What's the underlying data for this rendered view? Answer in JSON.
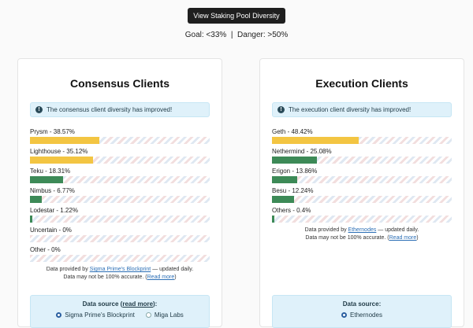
{
  "header": {
    "diversity_button": "View Staking Pool Diversity",
    "goal_text": "Goal: <33%",
    "separator": "|",
    "danger_text": "Danger: >50%"
  },
  "colors": {
    "majority": "#f3c542",
    "healthy": "#3d8a57"
  },
  "consensus": {
    "title": "Consensus Clients",
    "alert": "The consensus client diversity has improved!",
    "clients": [
      {
        "label": "Prysm - 38.57%",
        "share": 38.57,
        "status": "majority"
      },
      {
        "label": "Lighthouse - 35.12%",
        "share": 35.12,
        "status": "majority"
      },
      {
        "label": "Teku - 18.31%",
        "share": 18.31,
        "status": "healthy"
      },
      {
        "label": "Nimbus - 6.77%",
        "share": 6.77,
        "status": "healthy"
      },
      {
        "label": "Lodestar - 1.22%",
        "share": 1.22,
        "status": "healthy"
      },
      {
        "label": "Uncertain - 0%",
        "share": 0,
        "status": "healthy"
      },
      {
        "label": "Other - 0%",
        "share": 0,
        "status": "healthy"
      }
    ],
    "credit_prefix": "Data provided by ",
    "credit_link": "Sigma Prime's Blockprint",
    "credit_suffix": " — updated daily.",
    "accuracy_prefix": "Data may not be 100% accurate. (",
    "accuracy_link": "Read more",
    "accuracy_suffix": ")",
    "source_title": "Data source (",
    "source_link": "read more",
    "source_suffix": "):",
    "options": [
      {
        "label": "Sigma Prime's Blockprint",
        "selected": true
      },
      {
        "label": "Miga Labs",
        "selected": false
      }
    ]
  },
  "execution": {
    "title": "Execution Clients",
    "alert": "The execution client diversity has improved!",
    "clients": [
      {
        "label": "Geth - 48.42%",
        "share": 48.42,
        "status": "majority"
      },
      {
        "label": "Nethermind - 25.08%",
        "share": 25.08,
        "status": "healthy"
      },
      {
        "label": "Erigon - 13.86%",
        "share": 13.86,
        "status": "healthy"
      },
      {
        "label": "Besu - 12.24%",
        "share": 12.24,
        "status": "healthy"
      },
      {
        "label": "Others - 0.4%",
        "share": 0.4,
        "status": "healthy"
      }
    ],
    "credit_prefix": "Data provided by ",
    "credit_link": "Ethernodes",
    "credit_suffix": " — updated daily.",
    "accuracy_prefix": "Data may not be 100% accurate. (",
    "accuracy_link": "Read more",
    "accuracy_suffix": ")",
    "source_title": "Data source:",
    "options": [
      {
        "label": "Ethernodes",
        "selected": true
      }
    ]
  }
}
